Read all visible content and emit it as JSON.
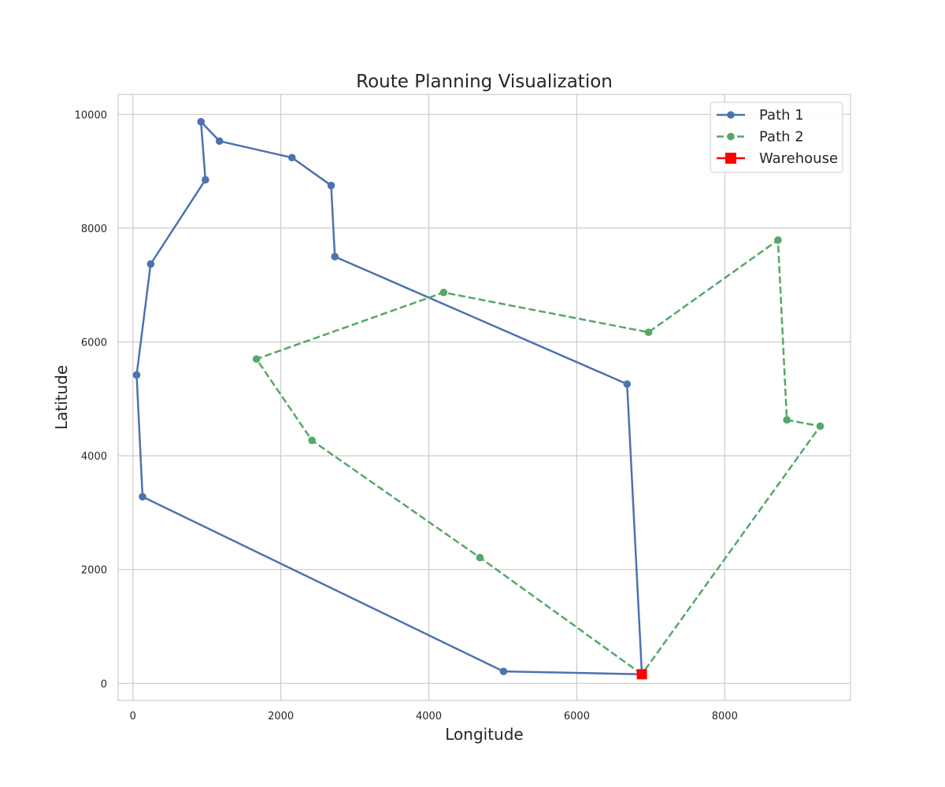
{
  "chart_data": {
    "type": "line",
    "title": "Route Planning Visualization",
    "xlabel": "Longitude",
    "ylabel": "Latitude",
    "xlim": [
      -200,
      9700
    ],
    "ylim": [
      -300,
      10350
    ],
    "xticks": [
      0,
      2000,
      4000,
      6000,
      8000
    ],
    "yticks": [
      0,
      2000,
      4000,
      6000,
      8000,
      10000
    ],
    "xtick_labels": [
      "0",
      "2000",
      "4000",
      "6000",
      "8000"
    ],
    "ytick_labels": [
      "0",
      "2000",
      "4000",
      "6000",
      "8000",
      "10000"
    ],
    "grid": true,
    "legend_position": "top-right",
    "series": [
      {
        "name": "Path 1",
        "color": "#4c72b0",
        "style": "solid",
        "marker": "circle",
        "points": [
          [
            6880,
            160
          ],
          [
            6680,
            5260
          ],
          [
            2730,
            7500
          ],
          [
            2680,
            8750
          ],
          [
            2150,
            9240
          ],
          [
            1170,
            9530
          ],
          [
            920,
            9870
          ],
          [
            980,
            8850
          ],
          [
            240,
            7370
          ],
          [
            50,
            5420
          ],
          [
            130,
            3280
          ],
          [
            5010,
            210
          ],
          [
            6880,
            160
          ]
        ]
      },
      {
        "name": "Path 2",
        "color": "#55a868",
        "style": "dashed",
        "marker": "circle",
        "points": [
          [
            6880,
            160
          ],
          [
            4690,
            2210
          ],
          [
            2420,
            4270
          ],
          [
            1670,
            5700
          ],
          [
            4200,
            6870
          ],
          [
            6970,
            6170
          ],
          [
            8720,
            7790
          ],
          [
            8840,
            4630
          ],
          [
            9290,
            4520
          ],
          [
            6880,
            160
          ]
        ]
      }
    ],
    "warehouse": {
      "name": "Warehouse",
      "color": "#ff0000",
      "marker": "square",
      "x": 6880,
      "y": 160
    }
  }
}
